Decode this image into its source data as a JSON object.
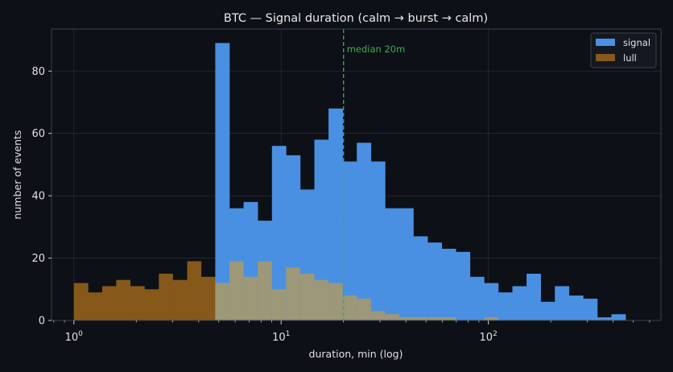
{
  "chart_data": {
    "type": "bar",
    "title": "BTC — Signal duration (calm → burst → calm)",
    "xlabel": "duration, min (log)",
    "ylabel": "number of events",
    "x_scale": "log",
    "xlim": [
      0.78,
      680
    ],
    "ylim": [
      0,
      93.5
    ],
    "x_ticks": [
      {
        "value": 1,
        "base": "10",
        "exp": "0"
      },
      {
        "value": 10,
        "base": "10",
        "exp": "1"
      },
      {
        "value": 100,
        "base": "10",
        "exp": "2"
      }
    ],
    "y_ticks": [
      0,
      20,
      40,
      60,
      80
    ],
    "grid": true,
    "legend_position": "top-right",
    "bin_edges": [
      1.0,
      1.17,
      1.37,
      1.6,
      1.87,
      2.19,
      2.57,
      3.0,
      3.52,
      4.11,
      4.81,
      5.63,
      6.59,
      7.71,
      9.03,
      10.56,
      12.36,
      14.47,
      16.93,
      19.81,
      23.18,
      27.13,
      31.75,
      37.15,
      43.47,
      50.87,
      59.53,
      69.66,
      81.51,
      95.38,
      111.6,
      130.6,
      152.8,
      178.8,
      209.3,
      244.9,
      286.6,
      335.4,
      392.4,
      459.2,
      537.3
    ],
    "series": [
      {
        "name": "signal",
        "color": "#4a90e2",
        "values": [
          0,
          0,
          0,
          0,
          0,
          0,
          0,
          0,
          0,
          0,
          89,
          36,
          38,
          32,
          56,
          53,
          42,
          58,
          68,
          51,
          57,
          51,
          36,
          36,
          27,
          25,
          23,
          22,
          14,
          12,
          9,
          11,
          15,
          6,
          11,
          8,
          7,
          1,
          2,
          0
        ]
      },
      {
        "name": "lull",
        "color": "#86591a",
        "values": [
          12,
          9,
          11,
          13,
          11,
          10,
          15,
          13,
          19,
          14,
          12,
          19,
          14,
          19,
          10,
          17,
          15,
          13,
          12,
          8,
          7,
          3,
          2,
          1,
          1,
          1,
          1,
          0,
          0,
          1,
          0,
          0,
          0,
          0,
          0,
          0,
          0,
          0,
          0,
          0
        ]
      }
    ],
    "overlap_color": "#9c9878",
    "annotations": [
      {
        "text": "median 20m",
        "x": 20,
        "color": "#3fae4a"
      }
    ]
  }
}
